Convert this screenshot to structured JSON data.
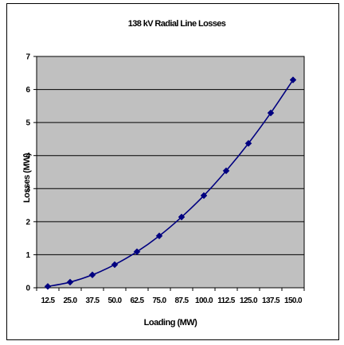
{
  "chart_data": {
    "type": "line",
    "title": "138 kV Radial Line Losses",
    "xlabel": "Loading (MW)",
    "ylabel": "Losses (MW)",
    "categories": [
      "12.5",
      "25.0",
      "37.5",
      "50.0",
      "62.5",
      "75.0",
      "87.5",
      "100.0",
      "112.5",
      "125.0",
      "137.5",
      "150.0"
    ],
    "series": [
      {
        "values": [
          0.04,
          0.17,
          0.39,
          0.7,
          1.09,
          1.57,
          2.14,
          2.79,
          3.54,
          4.37,
          5.29,
          6.29
        ]
      }
    ],
    "ylim": [
      0,
      7
    ],
    "yticks": [
      0,
      1,
      2,
      3,
      4,
      5,
      6,
      7
    ],
    "grid": "horizontal",
    "legend": "none",
    "colors": {
      "plot_background": "#c0c0c0",
      "series_line": "#000080",
      "gridline": "#000000"
    }
  }
}
